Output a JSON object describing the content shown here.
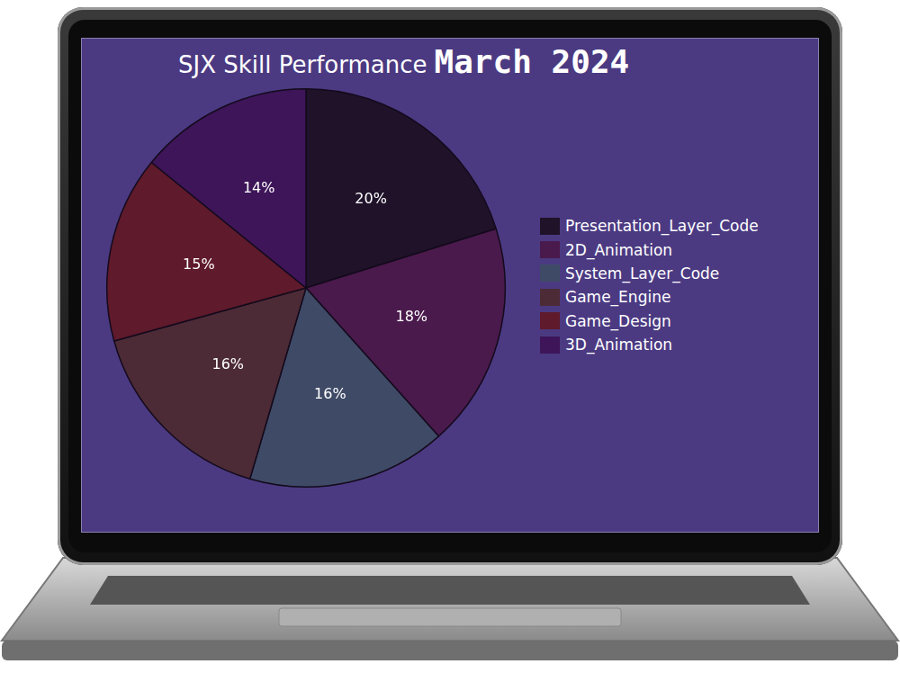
{
  "chart_data": {
    "type": "pie",
    "title": "SJX Skill Performance",
    "subtitle": "March 2024",
    "categories": [
      "Presentation_Layer_Code",
      "2D_Animation",
      "System_Layer_Code",
      "Game_Engine",
      "Game_Design",
      "3D_Animation"
    ],
    "values": [
      20,
      18,
      16,
      16,
      15,
      14
    ],
    "value_labels": [
      "20%",
      "18%",
      "16%",
      "16%",
      "15%",
      "14%"
    ],
    "colors": [
      "#1f1229",
      "#4a1a4c",
      "#3f4a66",
      "#4c2b36",
      "#5f1a2b",
      "#3d1558"
    ],
    "data_labels": true,
    "legend": "right"
  }
}
